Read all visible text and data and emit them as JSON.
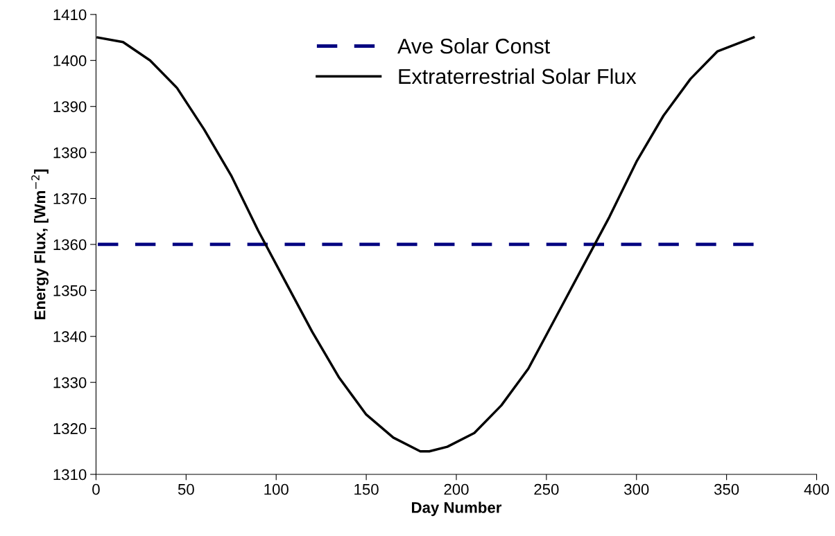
{
  "chart_data": {
    "type": "line",
    "xlabel": "Day Number",
    "ylabel": "Energy Flux, [Wm$^{−2}$]",
    "xlim": [
      0,
      400
    ],
    "xticks": [
      0,
      50,
      100,
      150,
      200,
      250,
      300,
      350,
      400
    ],
    "ylim": [
      1310,
      1410
    ],
    "yticks": [
      1310,
      1320,
      1330,
      1340,
      1350,
      1360,
      1370,
      1380,
      1390,
      1400,
      1410
    ],
    "grid": false,
    "legend": "top",
    "marker": "none",
    "series": [
      {
        "name": "Ave Solar Const",
        "color": "#000080",
        "line_style": "dashed",
        "x": [
          1,
          365
        ],
        "values": [
          1360,
          1360
        ]
      },
      {
        "name": "Extraterrestrial Solar Flux",
        "color": "#000000",
        "line_style": "solid",
        "x": [
          1,
          15,
          30,
          45,
          60,
          75,
          90,
          105,
          120,
          135,
          150,
          165,
          180,
          185,
          195,
          210,
          225,
          240,
          255,
          270,
          285,
          300,
          315,
          330,
          345,
          365
        ],
        "values": [
          1405,
          1404,
          1400,
          1394,
          1385,
          1375,
          1363,
          1352,
          1341,
          1331,
          1323,
          1318,
          1315,
          1315,
          1316,
          1319,
          1325,
          1333,
          1344,
          1355,
          1366,
          1378,
          1388,
          1396,
          1402,
          1405
        ]
      }
    ]
  }
}
